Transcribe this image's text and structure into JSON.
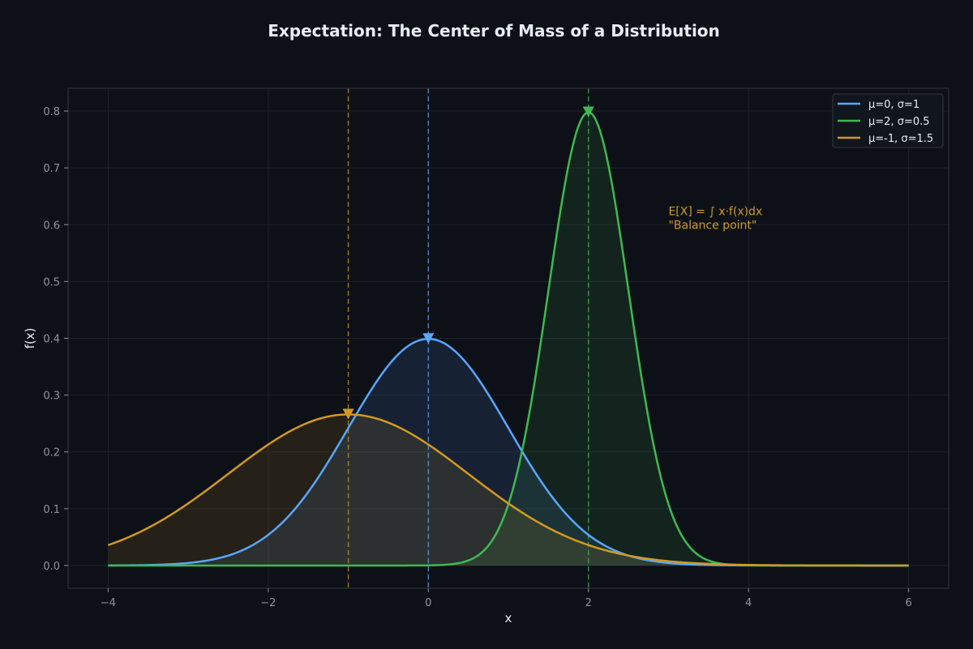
{
  "chart_data": {
    "type": "line",
    "title": "Expectation: The Center of Mass of a Distribution",
    "xlabel": "x",
    "ylabel": "f(x)",
    "xlim": [
      -4.5,
      6.5
    ],
    "ylim": [
      -0.04,
      0.84
    ],
    "x_range": [
      -4,
      6
    ],
    "xticks": [
      -4,
      -2,
      0,
      2,
      4,
      6
    ],
    "xtick_labels": [
      "−4",
      "−2",
      "0",
      "2",
      "4",
      "6"
    ],
    "yticks": [
      0.0,
      0.1,
      0.2,
      0.3,
      0.4,
      0.5,
      0.6,
      0.7,
      0.8
    ],
    "ytick_labels": [
      "0.0",
      "0.1",
      "0.2",
      "0.3",
      "0.4",
      "0.5",
      "0.6",
      "0.7",
      "0.8"
    ],
    "grid": true,
    "legend_position": "top-right",
    "series": [
      {
        "name": "μ=0, σ=1",
        "mu": 0,
        "sigma": 1,
        "peak": 0.399,
        "color": "#58a6ff",
        "fill": "#1a2a40"
      },
      {
        "name": "μ=2, σ=0.5",
        "mu": 2,
        "sigma": 0.5,
        "peak": 0.798,
        "color": "#3fb950",
        "fill": "#1a3a22"
      },
      {
        "name": "μ=-1, σ=1.5",
        "mu": -1,
        "sigma": 1.5,
        "peak": 0.266,
        "color": "#d29922",
        "fill": "#3a2e1a"
      }
    ],
    "annotation": {
      "lines": [
        "E[X] = ∫ x·f(x)dx",
        "\"Balance point\""
      ],
      "x": 3.0,
      "y": 0.625,
      "color": "#d29922"
    }
  }
}
